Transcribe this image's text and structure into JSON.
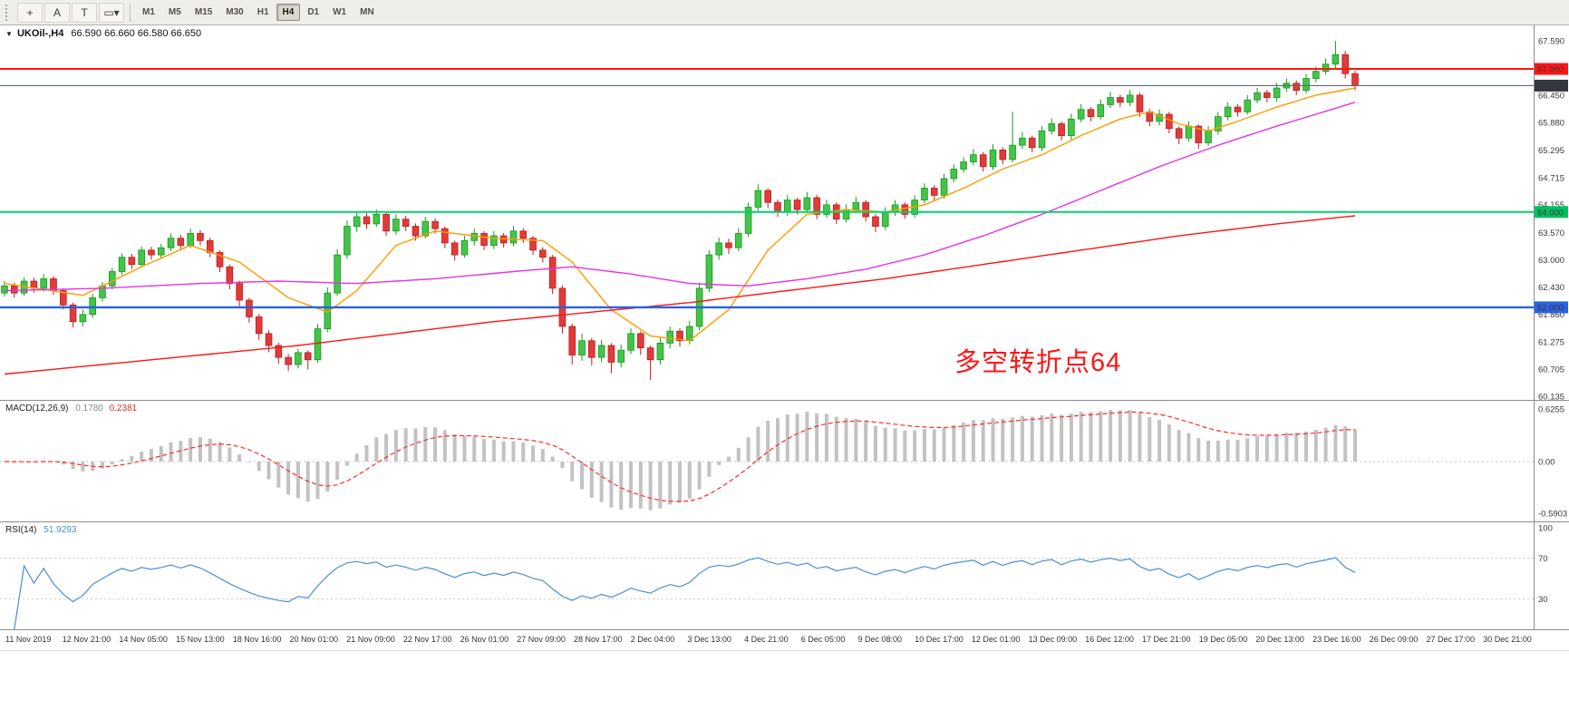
{
  "toolbar": {
    "tools": [
      {
        "name": "crosshair-tool",
        "glyph": "+"
      },
      {
        "name": "text-a-tool",
        "glyph": "A"
      },
      {
        "name": "text-t-tool",
        "glyph": "T"
      },
      {
        "name": "shapes-tool",
        "glyph": "▭",
        "dropdown": "▾"
      }
    ],
    "timeframes": [
      "M1",
      "M5",
      "M15",
      "M30",
      "H1",
      "H4",
      "D1",
      "W1",
      "MN"
    ],
    "active_timeframe": "H4"
  },
  "chart": {
    "menu_arrow": "▼",
    "symbol_title": "UKOil-,H4",
    "ohlc_readout": "66.590 66.660 66.580 66.650",
    "annotation_text": "多空转折点64"
  },
  "macd_panel": {
    "name": "MACD(12,26,9)",
    "main_value": "0.1780",
    "signal_value": "0.2381",
    "axis_labels": [
      "0.6255",
      "0.00",
      "-0.5903"
    ]
  },
  "rsi_panel": {
    "name": "RSI(14)",
    "value": "51.9293",
    "axis_labels": [
      "100",
      "70",
      "30"
    ]
  },
  "colors": {
    "bull": "#44c44a",
    "bull_edge": "#159a1b",
    "bear": "#e23a3a",
    "bear_edge": "#b81f1f",
    "ma_fast": "#ff9b00",
    "ma_mid": "#e632e6",
    "ma_slow": "#ff1414",
    "macd_histogram": "#c2c2c2",
    "macd_signal": "#ff2a2a",
    "rsi_line": "#4a8fd4",
    "annotation": "#ff1414"
  },
  "chart_data": {
    "type": "candlestick",
    "symbol": "UKOil-",
    "timeframe": "H4",
    "current_bar": {
      "open": 66.59,
      "high": 66.66,
      "low": 66.58,
      "close": 66.65
    },
    "y_axis_range": [
      60.135,
      67.59
    ],
    "y_axis_labels": [
      "67.590",
      "67.000",
      "66.450",
      "65.880",
      "65.295",
      "64.715",
      "64.155",
      "63.570",
      "63.000",
      "62.430",
      "61.860",
      "61.275",
      "60.705",
      "60.135"
    ],
    "x_axis_labels": [
      "11 Nov 2019",
      "12 Nov 21:00",
      "14 Nov 05:00",
      "15 Nov 13:00",
      "18 Nov 16:00",
      "20 Nov 01:00",
      "21 Nov 09:00",
      "22 Nov 17:00",
      "26 Nov 01:00",
      "27 Nov 09:00",
      "28 Nov 17:00",
      "2 Dec 04:00",
      "3 Dec 13:00",
      "4 Dec 21:00",
      "6 Dec 05:00",
      "9 Dec 08:00",
      "10 Dec 17:00",
      "12 Dec 01:00",
      "13 Dec 09:00",
      "16 Dec 12:00",
      "17 Dec 21:00",
      "19 Dec 05:00",
      "20 Dec 13:00",
      "23 Dec 16:00",
      "26 Dec 09:00",
      "27 Dec 17:00",
      "30 Dec 21:00"
    ],
    "horizontal_lines": [
      {
        "price": 67.0,
        "label": "67.000",
        "color": "#ff1414",
        "tag": "#ff1414",
        "width": 2
      },
      {
        "price": 66.65,
        "label": "66.650",
        "color": "#5a6878",
        "tag": "#30373f",
        "width": 1.1,
        "type": "bid"
      },
      {
        "price": 64.0,
        "label": "64.000",
        "color": "#00d26a",
        "tag": "#00c060",
        "width": 2
      },
      {
        "price": 62.0,
        "label": "62.000",
        "color": "#2a62e0",
        "tag": "#2a62e0",
        "width": 2.4
      }
    ],
    "ohlc": [
      [
        62.3,
        62.55,
        62.22,
        62.45
      ],
      [
        62.45,
        62.52,
        62.2,
        62.3
      ],
      [
        62.3,
        62.63,
        62.24,
        62.55
      ],
      [
        62.55,
        62.62,
        62.31,
        62.4
      ],
      [
        62.4,
        62.7,
        62.33,
        62.6
      ],
      [
        62.6,
        62.66,
        62.26,
        62.35
      ],
      [
        62.35,
        62.4,
        61.96,
        62.05
      ],
      [
        62.05,
        62.1,
        61.58,
        61.7
      ],
      [
        61.7,
        61.95,
        61.6,
        61.85
      ],
      [
        61.85,
        62.28,
        61.78,
        62.2
      ],
      [
        62.2,
        62.53,
        62.12,
        62.45
      ],
      [
        62.45,
        62.83,
        62.38,
        62.75
      ],
      [
        62.75,
        63.13,
        62.68,
        63.05
      ],
      [
        63.05,
        63.12,
        62.8,
        62.9
      ],
      [
        62.9,
        63.28,
        62.84,
        63.2
      ],
      [
        63.2,
        63.27,
        63.0,
        63.1
      ],
      [
        63.1,
        63.33,
        63.02,
        63.25
      ],
      [
        63.25,
        63.55,
        63.18,
        63.45
      ],
      [
        63.45,
        63.52,
        63.2,
        63.3
      ],
      [
        63.3,
        63.65,
        63.24,
        63.55
      ],
      [
        63.55,
        63.62,
        63.3,
        63.4
      ],
      [
        63.4,
        63.46,
        63.05,
        63.15
      ],
      [
        63.15,
        63.2,
        62.74,
        62.85
      ],
      [
        62.85,
        62.9,
        62.38,
        62.5
      ],
      [
        62.5,
        62.56,
        62.02,
        62.15
      ],
      [
        62.15,
        62.2,
        61.68,
        61.8
      ],
      [
        61.8,
        61.86,
        61.32,
        61.45
      ],
      [
        61.45,
        61.52,
        61.06,
        61.2
      ],
      [
        61.2,
        61.26,
        60.82,
        60.95
      ],
      [
        60.95,
        61.02,
        60.66,
        60.8
      ],
      [
        60.8,
        61.13,
        60.72,
        61.05
      ],
      [
        61.05,
        61.1,
        60.7,
        60.9
      ],
      [
        60.9,
        61.65,
        60.84,
        61.55
      ],
      [
        61.55,
        62.42,
        61.48,
        62.3
      ],
      [
        62.3,
        63.22,
        62.24,
        63.1
      ],
      [
        63.1,
        63.82,
        63.02,
        63.7
      ],
      [
        63.7,
        64.02,
        63.58,
        63.9
      ],
      [
        63.9,
        63.98,
        63.64,
        63.75
      ],
      [
        63.75,
        64.05,
        63.68,
        63.95
      ],
      [
        63.95,
        64.0,
        63.5,
        63.6
      ],
      [
        63.6,
        63.95,
        63.52,
        63.85
      ],
      [
        63.85,
        63.92,
        63.6,
        63.7
      ],
      [
        63.7,
        63.76,
        63.4,
        63.5
      ],
      [
        63.5,
        63.9,
        63.44,
        63.8
      ],
      [
        63.8,
        63.87,
        63.55,
        63.65
      ],
      [
        63.65,
        63.7,
        63.24,
        63.35
      ],
      [
        63.35,
        63.4,
        62.98,
        63.1
      ],
      [
        63.1,
        63.5,
        63.04,
        63.4
      ],
      [
        63.4,
        63.65,
        63.3,
        63.55
      ],
      [
        63.55,
        63.6,
        63.2,
        63.3
      ],
      [
        63.3,
        63.6,
        63.22,
        63.5
      ],
      [
        63.5,
        63.56,
        63.25,
        63.35
      ],
      [
        63.35,
        63.7,
        63.28,
        63.6
      ],
      [
        63.6,
        63.66,
        63.35,
        63.45
      ],
      [
        63.45,
        63.5,
        63.1,
        63.2
      ],
      [
        63.2,
        63.26,
        62.94,
        63.05
      ],
      [
        63.05,
        63.1,
        62.28,
        62.4
      ],
      [
        62.4,
        62.46,
        61.45,
        61.6
      ],
      [
        61.6,
        61.66,
        60.8,
        61.0
      ],
      [
        61.0,
        61.45,
        60.88,
        61.3
      ],
      [
        61.3,
        61.36,
        60.78,
        60.95
      ],
      [
        60.95,
        61.32,
        60.85,
        61.2
      ],
      [
        61.2,
        61.25,
        60.62,
        60.85
      ],
      [
        60.85,
        61.22,
        60.74,
        61.1
      ],
      [
        61.1,
        61.56,
        61.02,
        61.45
      ],
      [
        61.45,
        61.5,
        61.0,
        61.15
      ],
      [
        61.15,
        61.2,
        60.48,
        60.9
      ],
      [
        60.9,
        61.36,
        60.8,
        61.25
      ],
      [
        61.25,
        61.6,
        61.14,
        61.5
      ],
      [
        61.5,
        61.56,
        61.18,
        61.3
      ],
      [
        61.3,
        61.72,
        61.22,
        61.6
      ],
      [
        61.6,
        62.52,
        61.52,
        62.4
      ],
      [
        62.4,
        63.2,
        62.32,
        63.1
      ],
      [
        63.1,
        63.46,
        63.0,
        63.35
      ],
      [
        63.35,
        63.44,
        63.12,
        63.25
      ],
      [
        63.25,
        63.66,
        63.18,
        63.55
      ],
      [
        63.55,
        64.2,
        63.48,
        64.1
      ],
      [
        64.1,
        64.58,
        64.02,
        64.45
      ],
      [
        64.45,
        64.5,
        64.08,
        64.2
      ],
      [
        64.2,
        64.26,
        63.9,
        64.0
      ],
      [
        64.0,
        64.35,
        63.92,
        64.25
      ],
      [
        64.25,
        64.3,
        63.95,
        64.05
      ],
      [
        64.05,
        64.42,
        63.98,
        64.3
      ],
      [
        64.3,
        64.36,
        63.85,
        63.95
      ],
      [
        63.95,
        64.26,
        63.88,
        64.15
      ],
      [
        64.15,
        64.2,
        63.75,
        63.85
      ],
      [
        63.85,
        64.16,
        63.78,
        64.05
      ],
      [
        64.05,
        64.32,
        63.98,
        64.2
      ],
      [
        64.2,
        64.25,
        63.8,
        63.9
      ],
      [
        63.9,
        63.96,
        63.58,
        63.7
      ],
      [
        63.7,
        64.1,
        63.62,
        64.0
      ],
      [
        64.0,
        64.25,
        63.92,
        64.15
      ],
      [
        64.15,
        64.2,
        63.86,
        63.95
      ],
      [
        63.95,
        64.35,
        63.88,
        64.25
      ],
      [
        64.25,
        64.6,
        64.18,
        64.5
      ],
      [
        64.5,
        64.56,
        64.25,
        64.35
      ],
      [
        64.35,
        64.8,
        64.28,
        64.7
      ],
      [
        64.7,
        65.0,
        64.62,
        64.9
      ],
      [
        64.9,
        65.15,
        64.82,
        65.05
      ],
      [
        65.05,
        65.32,
        64.98,
        65.2
      ],
      [
        65.2,
        65.26,
        64.85,
        64.95
      ],
      [
        64.95,
        65.42,
        64.88,
        65.3
      ],
      [
        65.3,
        65.36,
        65.0,
        65.1
      ],
      [
        65.1,
        66.1,
        65.04,
        65.4
      ],
      [
        65.4,
        65.68,
        65.32,
        65.55
      ],
      [
        65.55,
        65.6,
        65.25,
        65.35
      ],
      [
        65.35,
        65.8,
        65.28,
        65.7
      ],
      [
        65.7,
        65.96,
        65.62,
        65.85
      ],
      [
        65.85,
        65.9,
        65.5,
        65.6
      ],
      [
        65.6,
        66.06,
        65.52,
        65.95
      ],
      [
        65.95,
        66.26,
        65.88,
        66.15
      ],
      [
        66.15,
        66.2,
        65.9,
        66.0
      ],
      [
        66.0,
        66.36,
        65.94,
        66.25
      ],
      [
        66.25,
        66.52,
        66.18,
        66.4
      ],
      [
        66.4,
        66.46,
        66.2,
        66.3
      ],
      [
        66.3,
        66.56,
        66.22,
        66.45
      ],
      [
        66.45,
        66.5,
        66.0,
        66.1
      ],
      [
        66.1,
        66.16,
        65.8,
        65.9
      ],
      [
        65.9,
        66.15,
        65.82,
        66.05
      ],
      [
        66.05,
        66.1,
        65.65,
        65.75
      ],
      [
        65.75,
        65.8,
        65.42,
        65.55
      ],
      [
        65.55,
        65.9,
        65.48,
        65.8
      ],
      [
        65.8,
        65.84,
        65.32,
        65.45
      ],
      [
        65.45,
        65.8,
        65.38,
        65.7
      ],
      [
        65.7,
        66.1,
        65.62,
        66.0
      ],
      [
        66.0,
        66.3,
        65.92,
        66.2
      ],
      [
        66.2,
        66.26,
        66.0,
        66.1
      ],
      [
        66.1,
        66.45,
        66.04,
        66.35
      ],
      [
        66.35,
        66.6,
        66.28,
        66.5
      ],
      [
        66.5,
        66.56,
        66.3,
        66.4
      ],
      [
        66.4,
        66.7,
        66.32,
        66.6
      ],
      [
        66.6,
        66.8,
        66.52,
        66.7
      ],
      [
        66.7,
        66.76,
        66.45,
        66.55
      ],
      [
        66.55,
        66.9,
        66.48,
        66.8
      ],
      [
        66.8,
        67.05,
        66.72,
        66.95
      ],
      [
        66.95,
        67.22,
        66.88,
        67.1
      ],
      [
        67.1,
        67.59,
        67.02,
        67.3
      ],
      [
        67.3,
        67.38,
        66.8,
        66.9
      ],
      [
        66.9,
        66.96,
        66.55,
        66.65
      ]
    ],
    "moving_averages": [
      {
        "name": "ma-fast-orange",
        "anchors": [
          [
            0,
            62.5
          ],
          [
            8,
            62.25
          ],
          [
            14,
            62.85
          ],
          [
            19,
            63.3
          ],
          [
            24,
            62.95
          ],
          [
            29,
            62.2
          ],
          [
            33,
            61.9
          ],
          [
            36,
            62.35
          ],
          [
            40,
            63.3
          ],
          [
            44,
            63.6
          ],
          [
            50,
            63.45
          ],
          [
            55,
            63.4
          ],
          [
            58,
            62.95
          ],
          [
            62,
            61.95
          ],
          [
            66,
            61.4
          ],
          [
            70,
            61.3
          ],
          [
            74,
            61.95
          ],
          [
            78,
            63.2
          ],
          [
            82,
            63.95
          ],
          [
            86,
            64.05
          ],
          [
            90,
            64.0
          ],
          [
            94,
            64.15
          ],
          [
            98,
            64.5
          ],
          [
            102,
            64.9
          ],
          [
            106,
            65.2
          ],
          [
            110,
            65.6
          ],
          [
            114,
            65.95
          ],
          [
            117,
            66.1
          ],
          [
            120,
            65.85
          ],
          [
            123,
            65.7
          ],
          [
            126,
            65.9
          ],
          [
            130,
            66.2
          ],
          [
            134,
            66.45
          ],
          [
            138,
            66.6
          ]
        ]
      },
      {
        "name": "ma-mid-magenta",
        "anchors": [
          [
            0,
            62.35
          ],
          [
            10,
            62.4
          ],
          [
            20,
            62.5
          ],
          [
            28,
            62.55
          ],
          [
            36,
            62.5
          ],
          [
            44,
            62.6
          ],
          [
            52,
            62.75
          ],
          [
            58,
            62.85
          ],
          [
            64,
            62.7
          ],
          [
            70,
            62.5
          ],
          [
            76,
            62.45
          ],
          [
            82,
            62.6
          ],
          [
            88,
            62.8
          ],
          [
            94,
            63.1
          ],
          [
            100,
            63.5
          ],
          [
            106,
            63.95
          ],
          [
            112,
            64.45
          ],
          [
            118,
            64.95
          ],
          [
            124,
            65.4
          ],
          [
            130,
            65.8
          ],
          [
            134,
            66.05
          ],
          [
            138,
            66.3
          ]
        ]
      },
      {
        "name": "ma-slow-red",
        "anchors": [
          [
            0,
            60.6
          ],
          [
            10,
            60.8
          ],
          [
            20,
            61.0
          ],
          [
            30,
            61.2
          ],
          [
            40,
            61.45
          ],
          [
            50,
            61.7
          ],
          [
            60,
            61.9
          ],
          [
            70,
            62.1
          ],
          [
            80,
            62.35
          ],
          [
            90,
            62.6
          ],
          [
            100,
            62.9
          ],
          [
            110,
            63.2
          ],
          [
            120,
            63.5
          ],
          [
            130,
            63.75
          ],
          [
            138,
            63.92
          ]
        ]
      }
    ],
    "indicators": [
      {
        "type": "macd",
        "params": [
          12,
          26,
          9
        ],
        "current_values": [
          0.178,
          0.2381
        ],
        "axis_range": [
          -0.5903,
          0.6255
        ]
      },
      {
        "type": "rsi",
        "params": [
          14
        ],
        "current_value": 51.9293,
        "levels": [
          30,
          70
        ],
        "axis_range": [
          0,
          100
        ]
      }
    ]
  }
}
